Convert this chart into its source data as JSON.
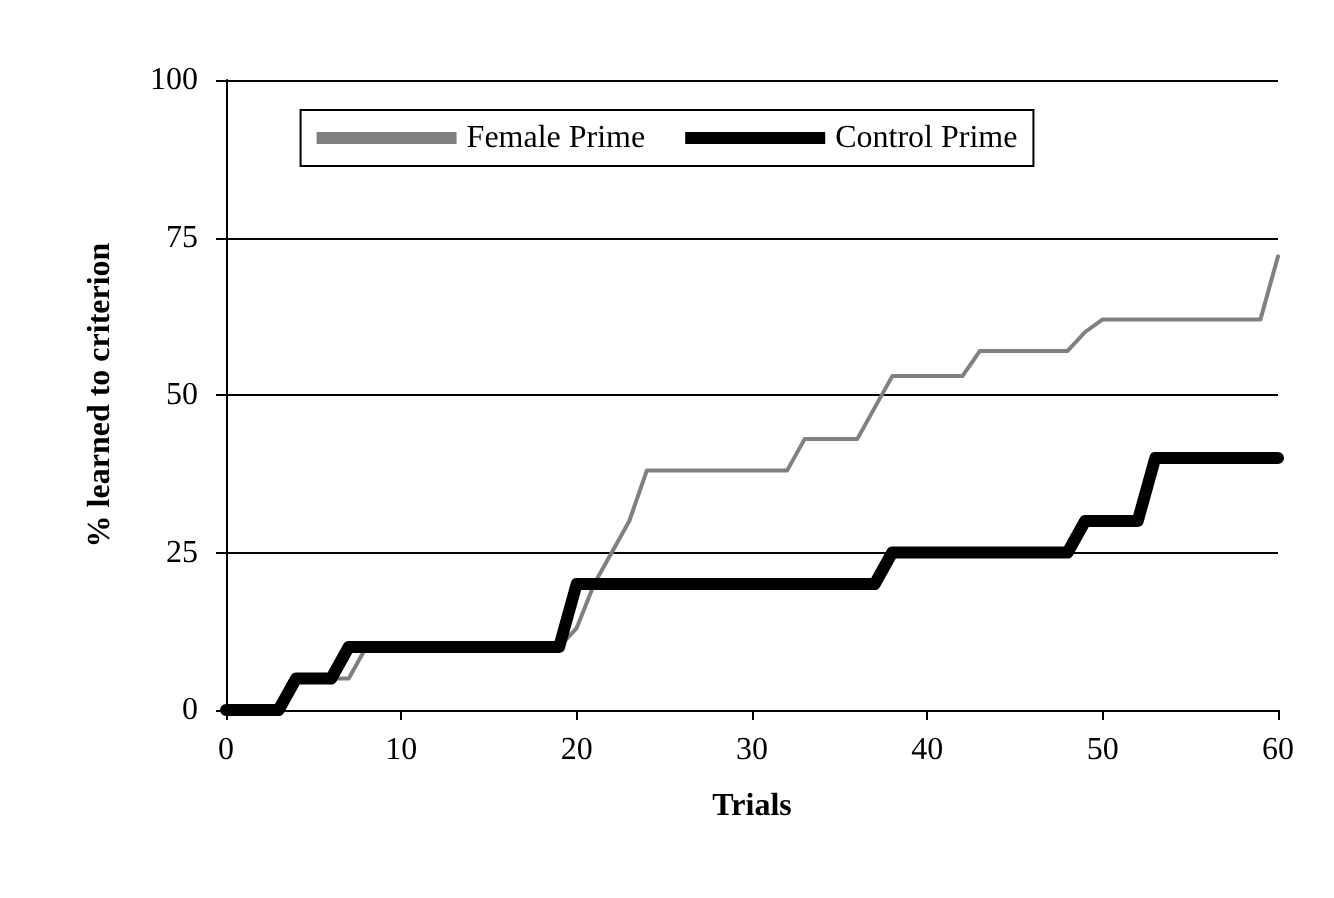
{
  "chart_data": {
    "type": "line",
    "xlabel": "Trials",
    "ylabel": "% learned to criterion",
    "xlim": [
      0,
      60
    ],
    "xticks": [
      0,
      10,
      20,
      30,
      40,
      50,
      60
    ],
    "ylim": [
      0,
      100
    ],
    "yticks": [
      0,
      25,
      50,
      75,
      100
    ],
    "grid": "y",
    "legend": "top",
    "marker": "none",
    "line_style": "solid",
    "series": [
      {
        "name": "Female Prime",
        "color": "#808080",
        "x": [
          0,
          3,
          4,
          7,
          8,
          19,
          20,
          21,
          22,
          23,
          24,
          32,
          33,
          36,
          37,
          38,
          42,
          43,
          48,
          49,
          50,
          59,
          60
        ],
        "values": [
          0,
          0,
          5,
          5,
          10,
          10,
          13,
          20,
          25,
          30,
          38,
          38,
          43,
          43,
          48,
          53,
          53,
          57,
          57,
          60,
          62,
          62,
          72
        ]
      },
      {
        "name": "Control Prime",
        "color": "#000000",
        "x": [
          0,
          3,
          4,
          6,
          7,
          19,
          20,
          37,
          38,
          48,
          49,
          52,
          53,
          60
        ],
        "values": [
          0,
          0,
          5,
          5,
          10,
          10,
          20,
          20,
          25,
          25,
          30,
          30,
          40,
          40
        ]
      }
    ]
  }
}
